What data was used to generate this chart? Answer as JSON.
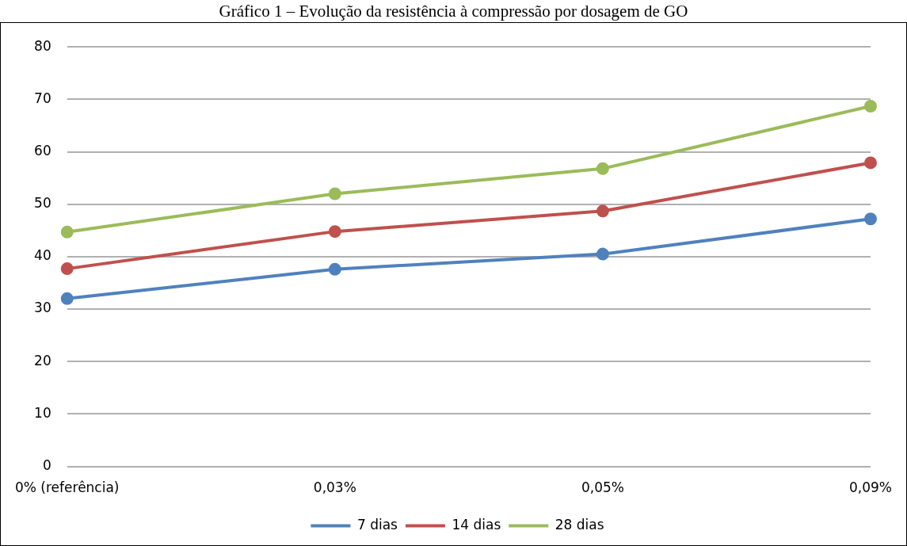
{
  "chart_data": {
    "type": "line",
    "title": "Gráfico 1 – Evolução da resistência à compressão por dosagem de GO",
    "categories": [
      "0% (referência)",
      "0,03%",
      "0,05%",
      "0,09%"
    ],
    "series": [
      {
        "name": "7 dias",
        "color": "#4f81bd",
        "values": [
          32.0,
          37.6,
          40.5,
          47.2
        ]
      },
      {
        "name": "14 dias",
        "color": "#c0504d",
        "values": [
          37.7,
          44.8,
          48.7,
          57.9
        ]
      },
      {
        "name": "28 dias",
        "color": "#9bbb59",
        "values": [
          44.7,
          52.0,
          56.8,
          68.7
        ]
      }
    ],
    "ylim": [
      0,
      80
    ],
    "yticks": [
      0,
      10,
      20,
      30,
      40,
      50,
      60,
      70,
      80
    ],
    "grid": "y",
    "legend": "bottom",
    "marker": "circle",
    "line_style": "solid"
  }
}
